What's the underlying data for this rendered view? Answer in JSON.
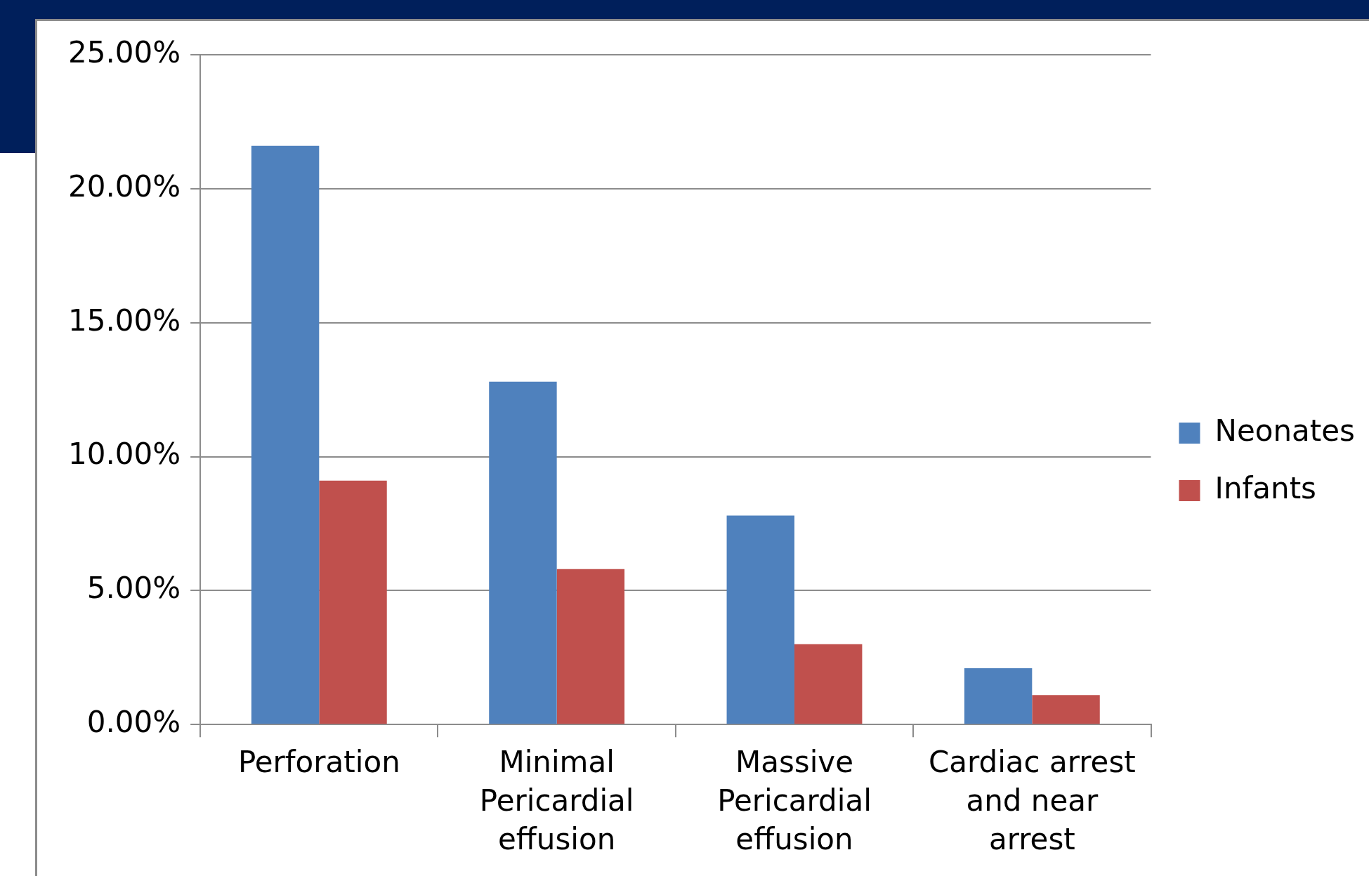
{
  "chart_data": {
    "type": "bar",
    "categories": [
      "Perforation",
      "Minimal Pericardial effusion",
      "Massive Pericardial effusion",
      "Cardiac arrest and near arrest"
    ],
    "series": [
      {
        "name": "Neonates",
        "color": "#4f81bd",
        "values": [
          21.6,
          12.8,
          7.8,
          2.1
        ]
      },
      {
        "name": "Infants",
        "color": "#c0504d",
        "values": [
          9.1,
          5.8,
          3.0,
          1.1
        ]
      }
    ],
    "ylim": [
      0,
      25
    ],
    "yticks": [
      {
        "value": 0,
        "label": "0.00%"
      },
      {
        "value": 5,
        "label": "5.00%"
      },
      {
        "value": 10,
        "label": "10.00%"
      },
      {
        "value": 15,
        "label": "15.00%"
      },
      {
        "value": 20,
        "label": "20.00%"
      },
      {
        "value": 25,
        "label": "25.00%"
      }
    ],
    "grid": "y",
    "legend": "right"
  }
}
